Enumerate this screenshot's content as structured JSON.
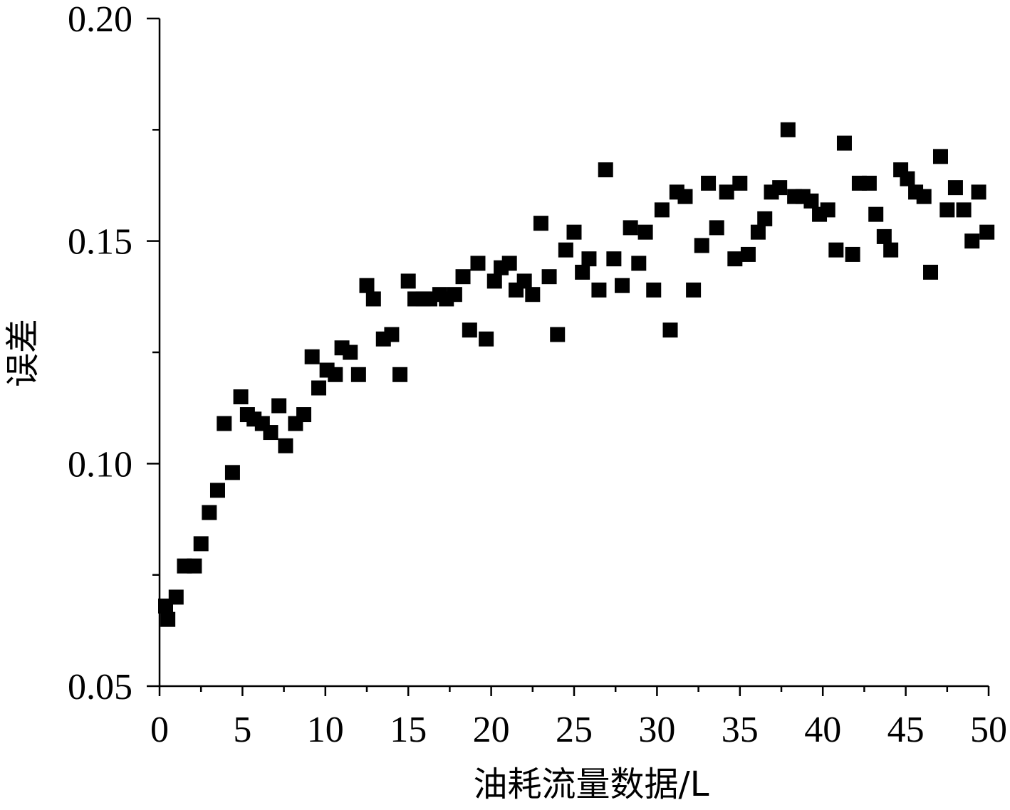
{
  "chart_data": {
    "type": "scatter",
    "xlabel": "油耗流量数据/L",
    "ylabel": "误差",
    "xlim": [
      0,
      50
    ],
    "ylim": [
      0.05,
      0.2
    ],
    "x_ticks": [
      "0",
      "5",
      "10",
      "15",
      "20",
      "25",
      "30",
      "35",
      "40",
      "45",
      "50"
    ],
    "y_ticks": [
      "0.05",
      "0.10",
      "0.15",
      "0.20"
    ],
    "grid": false,
    "marker": "square",
    "marker_color": "#000000",
    "series": [
      {
        "points": [
          [
            0.3,
            0.068
          ],
          [
            0.5,
            0.065
          ],
          [
            1.0,
            0.07
          ],
          [
            1.5,
            0.077
          ],
          [
            2.1,
            0.077
          ],
          [
            2.5,
            0.082
          ],
          [
            3.0,
            0.089
          ],
          [
            3.5,
            0.094
          ],
          [
            3.9,
            0.109
          ],
          [
            4.4,
            0.098
          ],
          [
            4.9,
            0.115
          ],
          [
            5.3,
            0.111
          ],
          [
            5.7,
            0.11
          ],
          [
            6.2,
            0.109
          ],
          [
            6.7,
            0.107
          ],
          [
            7.2,
            0.113
          ],
          [
            7.6,
            0.104
          ],
          [
            8.2,
            0.109
          ],
          [
            8.7,
            0.111
          ],
          [
            9.2,
            0.124
          ],
          [
            9.6,
            0.117
          ],
          [
            10.1,
            0.121
          ],
          [
            10.6,
            0.12
          ],
          [
            11.0,
            0.126
          ],
          [
            11.5,
            0.125
          ],
          [
            12.0,
            0.12
          ],
          [
            12.5,
            0.14
          ],
          [
            12.9,
            0.137
          ],
          [
            13.5,
            0.128
          ],
          [
            14.0,
            0.129
          ],
          [
            14.5,
            0.12
          ],
          [
            15.0,
            0.141
          ],
          [
            15.4,
            0.137
          ],
          [
            15.9,
            0.137
          ],
          [
            16.3,
            0.137
          ],
          [
            16.9,
            0.138
          ],
          [
            17.3,
            0.137
          ],
          [
            17.8,
            0.138
          ],
          [
            18.3,
            0.142
          ],
          [
            18.7,
            0.13
          ],
          [
            19.2,
            0.145
          ],
          [
            19.7,
            0.128
          ],
          [
            20.2,
            0.141
          ],
          [
            20.6,
            0.144
          ],
          [
            21.1,
            0.145
          ],
          [
            21.5,
            0.139
          ],
          [
            22.0,
            0.141
          ],
          [
            22.5,
            0.138
          ],
          [
            23.0,
            0.154
          ],
          [
            23.5,
            0.142
          ],
          [
            24.0,
            0.129
          ],
          [
            24.5,
            0.148
          ],
          [
            25.0,
            0.152
          ],
          [
            25.5,
            0.143
          ],
          [
            25.9,
            0.146
          ],
          [
            26.5,
            0.139
          ],
          [
            26.9,
            0.166
          ],
          [
            27.4,
            0.146
          ],
          [
            27.9,
            0.14
          ],
          [
            28.4,
            0.153
          ],
          [
            28.9,
            0.145
          ],
          [
            29.3,
            0.152
          ],
          [
            29.8,
            0.139
          ],
          [
            30.3,
            0.157
          ],
          [
            30.8,
            0.13
          ],
          [
            31.2,
            0.161
          ],
          [
            31.7,
            0.16
          ],
          [
            32.2,
            0.139
          ],
          [
            32.7,
            0.149
          ],
          [
            33.1,
            0.163
          ],
          [
            33.6,
            0.153
          ],
          [
            34.2,
            0.161
          ],
          [
            34.7,
            0.146
          ],
          [
            35.0,
            0.163
          ],
          [
            35.5,
            0.147
          ],
          [
            36.1,
            0.152
          ],
          [
            36.5,
            0.155
          ],
          [
            36.9,
            0.161
          ],
          [
            37.4,
            0.162
          ],
          [
            37.9,
            0.175
          ],
          [
            38.3,
            0.16
          ],
          [
            38.8,
            0.16
          ],
          [
            39.3,
            0.159
          ],
          [
            39.8,
            0.156
          ],
          [
            40.3,
            0.157
          ],
          [
            40.8,
            0.148
          ],
          [
            41.3,
            0.172
          ],
          [
            41.8,
            0.147
          ],
          [
            42.2,
            0.163
          ],
          [
            42.8,
            0.163
          ],
          [
            43.2,
            0.156
          ],
          [
            43.7,
            0.151
          ],
          [
            44.1,
            0.148
          ],
          [
            44.7,
            0.166
          ],
          [
            45.1,
            0.164
          ],
          [
            45.6,
            0.161
          ],
          [
            46.1,
            0.16
          ],
          [
            46.5,
            0.143
          ],
          [
            47.1,
            0.169
          ],
          [
            47.5,
            0.157
          ],
          [
            48.0,
            0.162
          ],
          [
            48.5,
            0.157
          ],
          [
            49.0,
            0.15
          ],
          [
            49.4,
            0.161
          ],
          [
            49.9,
            0.152
          ]
        ]
      }
    ]
  }
}
